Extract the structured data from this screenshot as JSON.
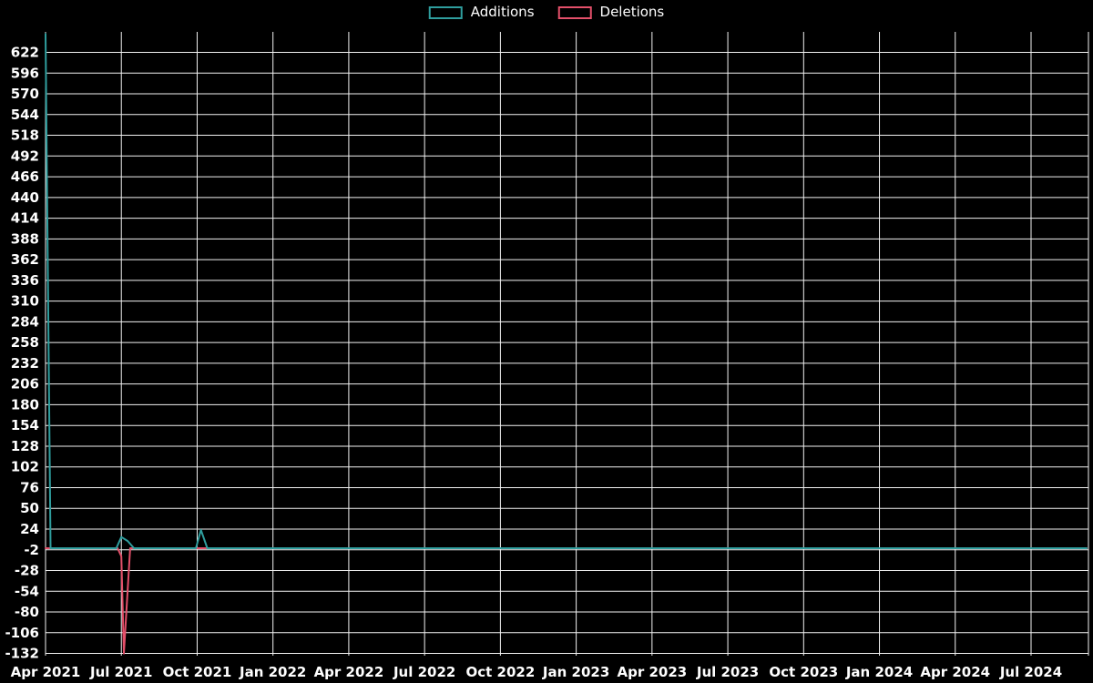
{
  "chart_data": {
    "type": "line",
    "title": "",
    "xlabel": "",
    "ylabel": "",
    "grid": true,
    "legend_position": "top-center",
    "background_color": "#000000",
    "grid_color": "#f2f2f2",
    "text_color": "#ffffff",
    "x_axis": {
      "tick_labels": [
        "Apr 2021",
        "Jul 2021",
        "Oct 2021",
        "Jan 2022",
        "Apr 2022",
        "Jul 2022",
        "Oct 2022",
        "Jan 2023",
        "Apr 2023",
        "Jul 2023",
        "Oct 2023",
        "Jan 2024",
        "Apr 2024",
        "Jul 2024"
      ],
      "months_per_tick": 3,
      "domain_months": [
        0,
        41.3
      ]
    },
    "y_axis": {
      "ticks": [
        622,
        596,
        570,
        544,
        518,
        492,
        466,
        440,
        414,
        388,
        362,
        336,
        310,
        284,
        258,
        232,
        206,
        180,
        154,
        128,
        102,
        76,
        50,
        24,
        -2,
        -28,
        -54,
        -80,
        -106,
        -132
      ],
      "domain": [
        -134,
        648
      ]
    },
    "series": [
      {
        "name": "Additions",
        "color": "#2f9e9e",
        "points": [
          [
            0,
            645
          ],
          [
            0.2,
            0
          ],
          [
            2.8,
            0
          ],
          [
            3.0,
            14
          ],
          [
            3.25,
            9
          ],
          [
            3.5,
            0
          ],
          [
            5.95,
            0
          ],
          [
            6.15,
            23
          ],
          [
            6.4,
            0
          ],
          [
            41.2,
            0
          ]
        ]
      },
      {
        "name": "Deletions",
        "color": "#e4506a",
        "points": [
          [
            0,
            0
          ],
          [
            2.85,
            0
          ],
          [
            3.0,
            -10
          ],
          [
            3.1,
            -132
          ],
          [
            3.35,
            0
          ],
          [
            41.2,
            0
          ]
        ]
      }
    ]
  }
}
